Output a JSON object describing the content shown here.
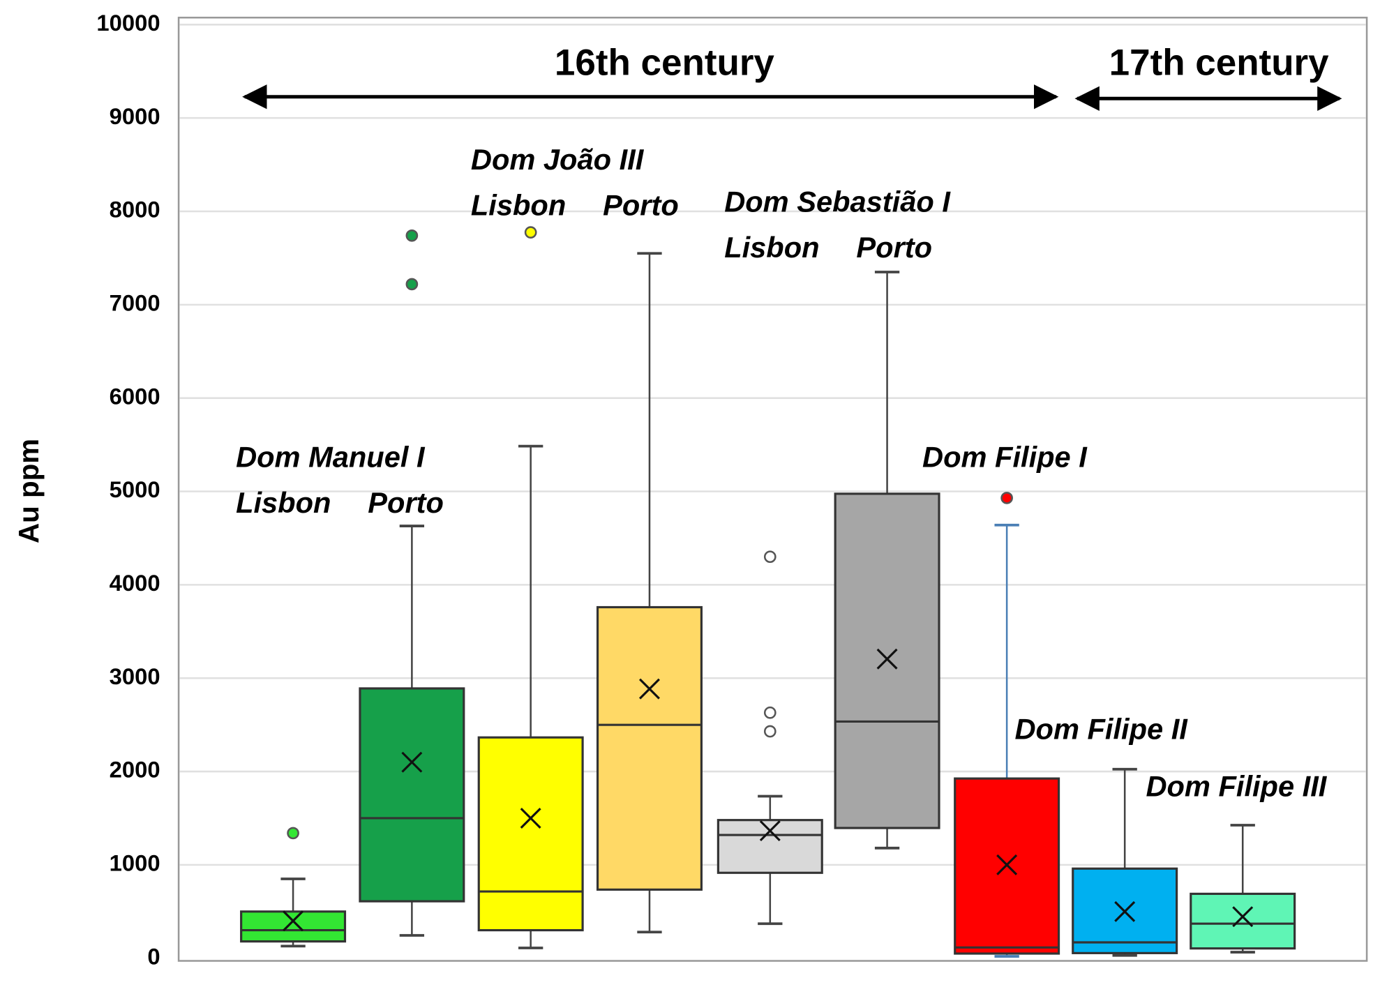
{
  "chart_data": {
    "type": "box",
    "y_label": "Au ppm",
    "periods": [
      "16th century",
      "17th century"
    ],
    "annotations": [
      "Dom Manuel I",
      "Lisbon",
      "Porto",
      "Dom João III",
      "Lisbon",
      "Porto",
      "Dom Sebastião I",
      "Lisbon",
      "Porto",
      "Dom Filipe I",
      "Dom Filipe II",
      "Dom Filipe III"
    ],
    "ylim": [
      0,
      10000
    ],
    "yticks": [
      0,
      1000,
      2000,
      3000,
      4000,
      5000,
      6000,
      7000,
      8000,
      9000,
      10000
    ],
    "grid": true,
    "boxes": [
      {
        "color": "#33e633",
        "whisker_low": 130,
        "q1": 180,
        "median": 300,
        "q3": 500,
        "whisker_high": 850,
        "mean": 400,
        "outliers": [
          1340
        ]
      },
      {
        "color": "#16a04a",
        "whisker_low": 245,
        "q1": 610,
        "median": 1500,
        "q3": 2890,
        "whisker_high": 4630,
        "mean": 2100,
        "outliers": [
          7220,
          7740
        ]
      },
      {
        "color": "#ffff00",
        "whisker_low": 110,
        "q1": 300,
        "median": 715,
        "q3": 2365,
        "whisker_high": 5485,
        "mean": 1500,
        "outliers": [
          7775
        ]
      },
      {
        "color": "#ffd966",
        "whisker_low": 280,
        "q1": 735,
        "median": 2500,
        "q3": 3760,
        "whisker_high": 7550,
        "mean": 2885,
        "outliers": []
      },
      {
        "color": "#d9d9d9",
        "whisker_low": 370,
        "q1": 915,
        "median": 1320,
        "q3": 1480,
        "whisker_high": 1735,
        "mean": 1365,
        "outliers": [
          4300,
          2630,
          2430
        ]
      },
      {
        "color": "#a6a6a6",
        "whisker_low": 1180,
        "q1": 1395,
        "median": 2535,
        "q3": 4975,
        "whisker_high": 7350,
        "mean": 3205,
        "outliers": []
      },
      {
        "color": "#ff0000",
        "whisker_low": 20,
        "q1": 50,
        "median": 115,
        "q3": 1925,
        "whisker_high": 4640,
        "mean": 1000,
        "outliers": [
          4930
        ]
      },
      {
        "color": "#00b0f0",
        "whisker_low": 30,
        "q1": 55,
        "median": 170,
        "q3": 960,
        "whisker_high": 2025,
        "mean": 500,
        "outliers": []
      },
      {
        "color": "#5ff5b5",
        "whisker_low": 65,
        "q1": 105,
        "median": 370,
        "q3": 690,
        "whisker_high": 1425,
        "mean": 445,
        "outliers": []
      }
    ]
  }
}
